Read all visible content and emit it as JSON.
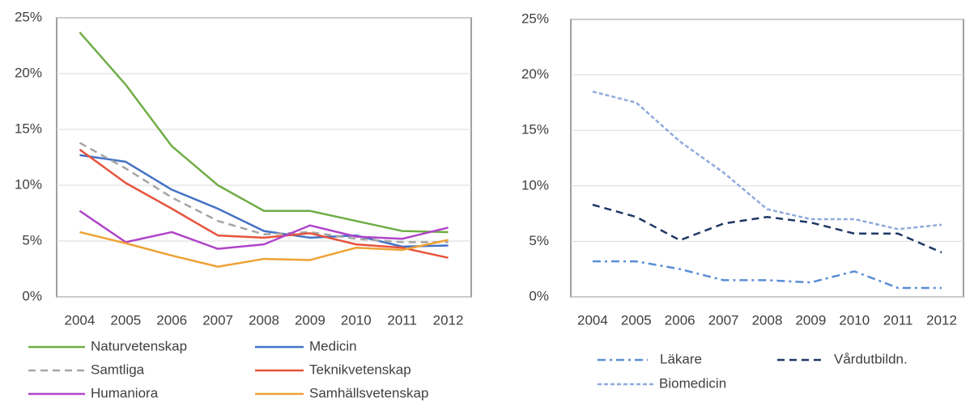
{
  "chart_data": [
    {
      "type": "line",
      "categories": [
        "2004",
        "2005",
        "2006",
        "2007",
        "2008",
        "2009",
        "2010",
        "2011",
        "2012"
      ],
      "ylim": [
        0,
        25
      ],
      "yticks": [
        {
          "value": 0,
          "label": "0%"
        },
        {
          "value": 5,
          "label": "5%"
        },
        {
          "value": 10,
          "label": "10%"
        },
        {
          "value": 15,
          "label": "15%"
        },
        {
          "value": 20,
          "label": "20%"
        },
        {
          "value": 25,
          "label": "25%"
        }
      ],
      "grid": true,
      "series": [
        {
          "name": "Naturvetenskap",
          "color": "#70ad47",
          "dash": "solid",
          "values": [
            23.7,
            19.0,
            13.5,
            10.0,
            7.7,
            7.7,
            6.8,
            5.9,
            5.8
          ]
        },
        {
          "name": "Medicin",
          "color": "#4472c4",
          "dash": "solid",
          "values": [
            12.7,
            12.1,
            9.6,
            7.9,
            5.9,
            5.3,
            5.5,
            4.5,
            4.6
          ]
        },
        {
          "name": "Samtliga",
          "color": "#a5a5a5",
          "dash": "dashed",
          "values": [
            13.8,
            11.5,
            8.9,
            6.8,
            5.6,
            5.8,
            5.2,
            4.9,
            4.9
          ]
        },
        {
          "name": "Teknikvetenskap",
          "color": "#e6533c",
          "dash": "solid",
          "values": [
            13.2,
            10.2,
            7.9,
            5.5,
            5.3,
            5.7,
            4.7,
            4.4,
            3.5
          ]
        },
        {
          "name": "Humaniora",
          "color": "#b044c8",
          "dash": "solid",
          "values": [
            7.7,
            4.9,
            5.8,
            4.3,
            4.7,
            6.4,
            5.4,
            5.2,
            6.2
          ]
        },
        {
          "name": "Samhällsvetenskap",
          "color": "#eea236",
          "dash": "solid",
          "values": [
            5.8,
            4.8,
            3.7,
            2.7,
            3.4,
            3.3,
            4.4,
            4.2,
            5.1
          ]
        }
      ]
    },
    {
      "type": "line",
      "categories": [
        "2004",
        "2005",
        "2006",
        "2007",
        "2008",
        "2009",
        "2010",
        "2011",
        "2012"
      ],
      "ylim": [
        0,
        25
      ],
      "yticks": [
        {
          "value": 0,
          "label": "0%"
        },
        {
          "value": 5,
          "label": "5%"
        },
        {
          "value": 10,
          "label": "10%"
        },
        {
          "value": 15,
          "label": "15%"
        },
        {
          "value": 20,
          "label": "20%"
        },
        {
          "value": 25,
          "label": "25%"
        }
      ],
      "grid": true,
      "series": [
        {
          "name": "Läkare",
          "color": "#5b8ed6",
          "dash": "dashdot",
          "values": [
            3.2,
            3.2,
            2.5,
            1.5,
            1.5,
            1.3,
            2.3,
            0.8,
            0.8
          ]
        },
        {
          "name": "Vårdutbildn.",
          "color": "#1f3864",
          "dash": "dashed",
          "values": [
            8.3,
            7.2,
            5.1,
            6.6,
            7.2,
            6.7,
            5.7,
            5.7,
            4.0
          ]
        },
        {
          "name": "Biomedicin",
          "color": "#8faadc",
          "dash": "dotted",
          "values": [
            18.5,
            17.5,
            14.0,
            11.2,
            7.9,
            7.0,
            7.0,
            6.1,
            6.5
          ]
        }
      ]
    }
  ]
}
